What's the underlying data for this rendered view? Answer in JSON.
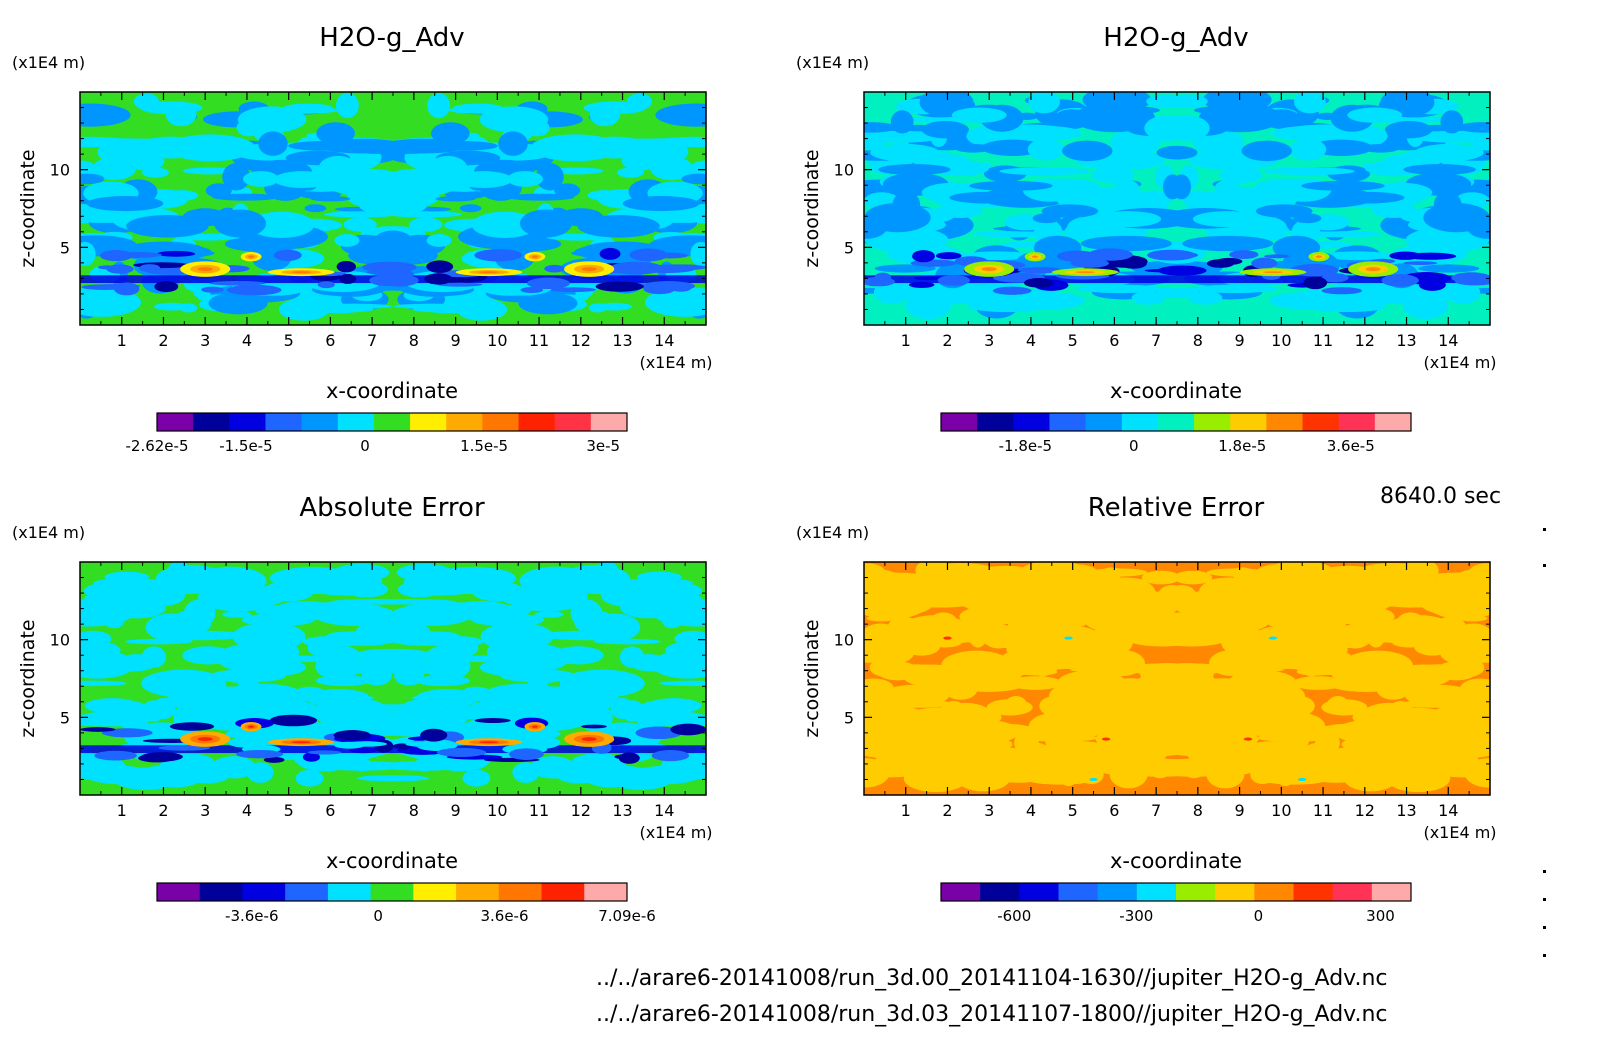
{
  "footer": {
    "time_label": "8640.0 sec",
    "files": [
      "../../arare6-20141008/run_3d.00_20141104-1630//jupiter_H2O-g_Adv.nc",
      "../../arare6-20141008/run_3d.03_20141107-1800//jupiter_H2O-g_Adv.nc"
    ]
  },
  "chart_data": [
    {
      "type": "heatmap",
      "title": "H2O-g_Adv",
      "xlabel": "x-coordinate",
      "ylabel": "z-coordinate",
      "x_unit": "(x1E4 m)",
      "y_unit": "(x1E4 m)",
      "xlim": [
        0,
        15
      ],
      "ylim": [
        0,
        15
      ],
      "x_ticks": [
        "1",
        "2",
        "3",
        "4",
        "5",
        "6",
        "7",
        "8",
        "9",
        "10",
        "11",
        "12",
        "13",
        "14"
      ],
      "y_ticks": [
        "5",
        "10"
      ],
      "colorbar": {
        "colors": [
          "#7a00a8",
          "#00009a",
          "#0000e0",
          "#1e66ff",
          "#0096ff",
          "#00e0ff",
          "#33dd22",
          "#ffee00",
          "#ffaa00",
          "#ff7700",
          "#ff2200",
          "#ff3344",
          "#ffaaaa"
        ],
        "tick_labels": [
          "-2.62e-5",
          "-1.5e-5",
          "0",
          "1.5e-5",
          "3e-5"
        ],
        "tick_values": [
          -2.62e-05,
          -1.5e-05,
          0,
          1.5e-05,
          3e-05
        ],
        "range": [
          -2.62e-05,
          3.3e-05
        ]
      },
      "dominant_colors": [
        "#33dd22",
        "#00e0ff",
        "#0096ff"
      ]
    },
    {
      "type": "heatmap",
      "title": "H2O-g_Adv",
      "xlabel": "x-coordinate",
      "ylabel": "z-coordinate",
      "x_unit": "(x1E4 m)",
      "y_unit": "(x1E4 m)",
      "xlim": [
        0,
        15
      ],
      "ylim": [
        0,
        15
      ],
      "x_ticks": [
        "1",
        "2",
        "3",
        "4",
        "5",
        "6",
        "7",
        "8",
        "9",
        "10",
        "11",
        "12",
        "13",
        "14"
      ],
      "y_ticks": [
        "5",
        "10"
      ],
      "colorbar": {
        "colors": [
          "#7a00a8",
          "#00009a",
          "#0000e0",
          "#1e66ff",
          "#0096ff",
          "#00e0ff",
          "#00f0c0",
          "#99ee00",
          "#ffcc00",
          "#ff8800",
          "#ff3300",
          "#ff3355",
          "#ffaaaa"
        ],
        "tick_labels": [
          "-1.8e-5",
          "0",
          "1.8e-5",
          "3.6e-5"
        ],
        "tick_values": [
          -1.8e-05,
          0,
          1.8e-05,
          3.6e-05
        ],
        "range": [
          -3.2e-05,
          4.6e-05
        ]
      },
      "dominant_colors": [
        "#00f0c0",
        "#0096ff",
        "#00e0ff"
      ]
    },
    {
      "type": "heatmap",
      "title": "Absolute Error",
      "xlabel": "x-coordinate",
      "ylabel": "z-coordinate",
      "x_unit": "(x1E4 m)",
      "y_unit": "(x1E4 m)",
      "xlim": [
        0,
        15
      ],
      "ylim": [
        0,
        15
      ],
      "x_ticks": [
        "1",
        "2",
        "3",
        "4",
        "5",
        "6",
        "7",
        "8",
        "9",
        "10",
        "11",
        "12",
        "13",
        "14"
      ],
      "y_ticks": [
        "5",
        "10"
      ],
      "colorbar": {
        "colors": [
          "#7a00a8",
          "#00009a",
          "#0000e0",
          "#1e66ff",
          "#00e0ff",
          "#33dd22",
          "#ffee00",
          "#ffaa00",
          "#ff7700",
          "#ff2200",
          "#ffaaaa"
        ],
        "tick_labels": [
          "-3.6e-6",
          "0",
          "3.6e-6",
          "7.09e-6"
        ],
        "tick_values": [
          -3.6e-06,
          0,
          3.6e-06,
          7.09e-06
        ],
        "range": [
          -6.3e-06,
          7.09e-06
        ]
      },
      "dominant_colors": [
        "#33dd22",
        "#00e0ff"
      ]
    },
    {
      "type": "heatmap",
      "title": "Relative Error",
      "xlabel": "x-coordinate",
      "ylabel": "z-coordinate",
      "x_unit": "(x1E4 m)",
      "y_unit": "(x1E4 m)",
      "xlim": [
        0,
        15
      ],
      "ylim": [
        0,
        15
      ],
      "x_ticks": [
        "1",
        "2",
        "3",
        "4",
        "5",
        "6",
        "7",
        "8",
        "9",
        "10",
        "11",
        "12",
        "13",
        "14"
      ],
      "y_ticks": [
        "5",
        "10"
      ],
      "colorbar": {
        "colors": [
          "#7a00a8",
          "#00009a",
          "#0000e0",
          "#1e66ff",
          "#0096ff",
          "#00e0ff",
          "#99ee00",
          "#ffcc00",
          "#ff8800",
          "#ff3300",
          "#ff3355",
          "#ffaaaa"
        ],
        "tick_labels": [
          "-600",
          "-300",
          "0",
          "300"
        ],
        "tick_values": [
          -600,
          -300,
          0,
          300
        ],
        "range": [
          -780,
          375
        ]
      },
      "dominant_colors": [
        "#ff8800",
        "#ffcc00"
      ]
    }
  ]
}
